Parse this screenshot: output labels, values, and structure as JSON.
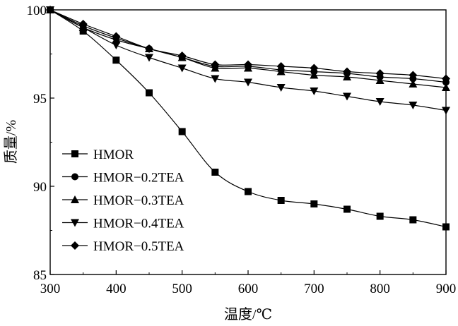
{
  "chart_data": {
    "type": "line",
    "title": "",
    "xlabel": "温度/℃",
    "ylabel": "质量/%",
    "xlim": [
      300,
      900
    ],
    "ylim": [
      85,
      100
    ],
    "x_ticks": [
      300,
      400,
      500,
      600,
      700,
      800,
      900
    ],
    "y_ticks": [
      85,
      90,
      95,
      100
    ],
    "grid": false,
    "legend_position": "bottom-left",
    "x": [
      300,
      350,
      400,
      450,
      500,
      550,
      600,
      650,
      700,
      750,
      800,
      850,
      900
    ],
    "series": [
      {
        "name": "HMOR",
        "marker": "square",
        "values": [
          100,
          98.8,
          97.15,
          95.3,
          93.1,
          90.8,
          89.7,
          89.2,
          89.0,
          88.7,
          88.3,
          88.1,
          87.7
        ]
      },
      {
        "name": "HMOR−0.2TEA",
        "marker": "circle",
        "values": [
          100,
          99.1,
          98.4,
          97.8,
          97.3,
          96.8,
          96.8,
          96.6,
          96.5,
          96.4,
          96.2,
          96.1,
          95.9
        ]
      },
      {
        "name": "HMOR−0.3TEA",
        "marker": "triangle-up",
        "values": [
          100,
          99.0,
          98.3,
          97.8,
          97.3,
          96.7,
          96.7,
          96.5,
          96.3,
          96.2,
          96.0,
          95.8,
          95.6
        ]
      },
      {
        "name": "HMOR−0.4TEA",
        "marker": "triangle-down",
        "values": [
          100,
          99.0,
          98.0,
          97.3,
          96.7,
          96.1,
          95.9,
          95.6,
          95.4,
          95.1,
          94.8,
          94.6,
          94.3
        ]
      },
      {
        "name": "HMOR−0.5TEA",
        "marker": "diamond",
        "values": [
          100,
          99.2,
          98.5,
          97.8,
          97.4,
          96.9,
          96.9,
          96.8,
          96.7,
          96.5,
          96.4,
          96.3,
          96.1
        ]
      }
    ]
  }
}
